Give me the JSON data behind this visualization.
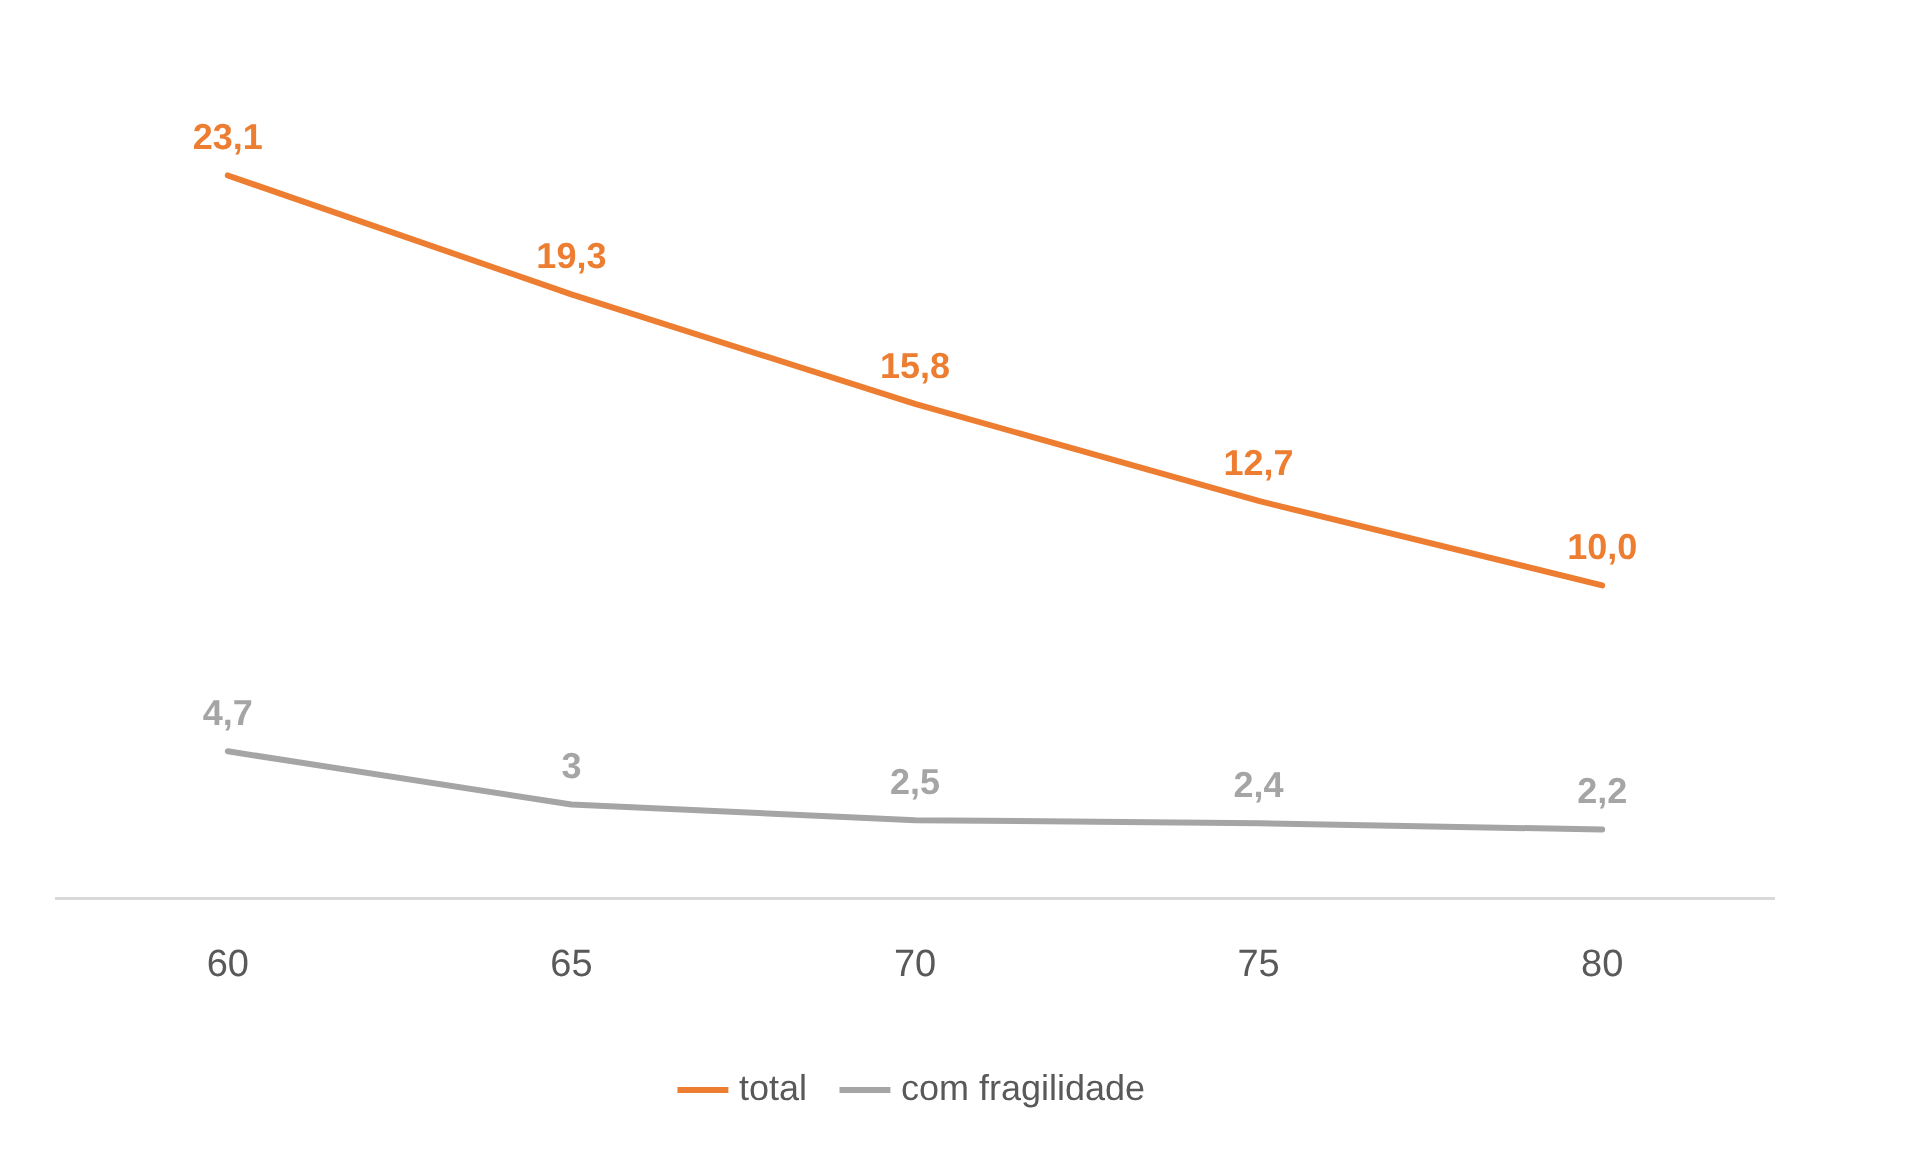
{
  "chart_data": {
    "type": "line",
    "categories": [
      "60",
      "65",
      "70",
      "75",
      "80"
    ],
    "series": [
      {
        "name": "total",
        "color": "#ed7d31",
        "values": [
          23.1,
          19.3,
          15.8,
          12.7,
          10.0
        ],
        "value_labels": [
          "23,1",
          "19,3",
          "15,8",
          "12,7",
          "10,0"
        ]
      },
      {
        "name": "com fragilidade",
        "color": "#a5a5a5",
        "values": [
          4.7,
          3,
          2.5,
          2.4,
          2.2
        ],
        "value_labels": [
          "4,7",
          "3",
          "2,5",
          "2,4",
          "2,2"
        ]
      }
    ],
    "grid": false,
    "legend": "bottom",
    "marker": "none",
    "line_style": "solid",
    "tick_labels": "x"
  }
}
